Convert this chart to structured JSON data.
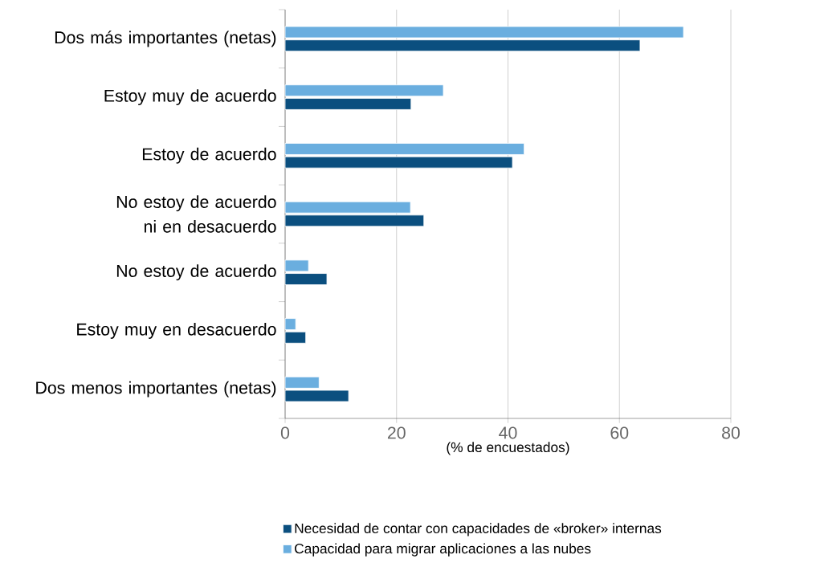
{
  "chart_data": {
    "type": "bar",
    "orientation": "horizontal",
    "xlabel": "(% de encuestados)",
    "categories": [
      "Dos más importantes (netas)",
      "Estoy muy de acuerdo",
      "Estoy de acuerdo",
      "No estoy de acuerdo ni en desacuerdo",
      "No estoy de acuerdo",
      "Estoy muy en desacuerdo",
      "Dos menos importantes (netas)"
    ],
    "series": [
      {
        "name": "Necesidad de contar con capacidades de «broker» internas",
        "color": "#0b4f7f",
        "values": [
          63.7,
          22.6,
          40.8,
          24.9,
          7.5,
          3.7,
          11.4
        ]
      },
      {
        "name": "Capacidad para migrar aplicaciones a las nubes",
        "color": "#6aaedf",
        "values": [
          71.5,
          28.4,
          42.9,
          22.5,
          4.2,
          1.9,
          6.1
        ]
      }
    ],
    "xlim": [
      0,
      80
    ],
    "xticks": [
      0,
      20,
      40,
      60,
      80
    ],
    "grid": "x",
    "legend": "bottom"
  }
}
